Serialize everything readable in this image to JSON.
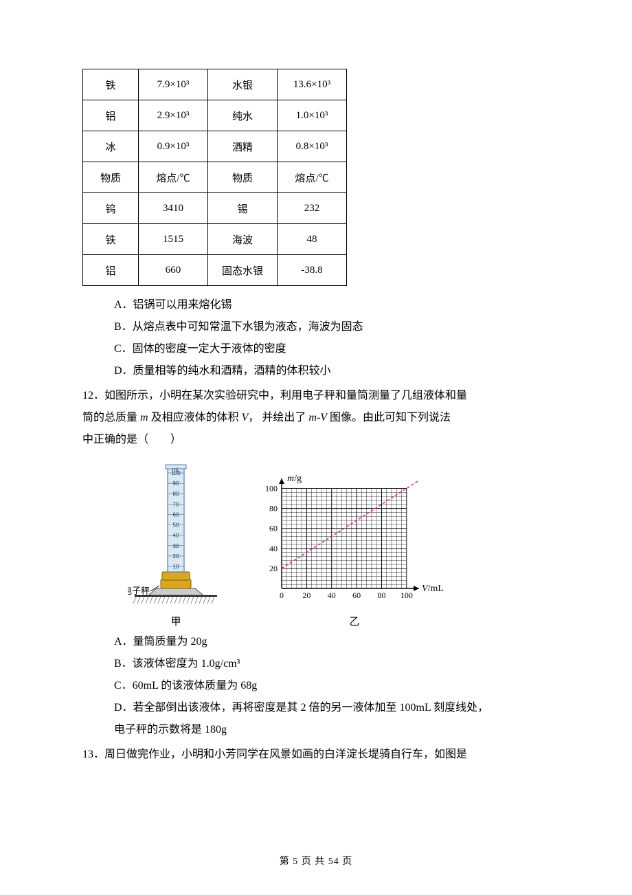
{
  "table": {
    "colWidths": [
      "col-a",
      "col-b",
      "col-c",
      "col-d"
    ],
    "rows": [
      [
        "铁",
        "7.9×10³",
        "水银",
        "13.6×10³"
      ],
      [
        "铝",
        "2.9×10³",
        "纯水",
        "1.0×10³"
      ],
      [
        "冰",
        "0.9×10³",
        "酒精",
        "0.8×10³"
      ],
      [
        "物质",
        "熔点/℃",
        "物质",
        "熔点/℃"
      ],
      [
        "钨",
        "3410",
        "锡",
        "232"
      ],
      [
        "铁",
        "1515",
        "海波",
        "48"
      ],
      [
        "铝",
        "660",
        "固态水银",
        "-38.8"
      ]
    ]
  },
  "q11options": {
    "A": "A．铝锅可以用来熔化锡",
    "B": "B．从熔点表中可知常温下水银为液态，海波为固态",
    "C": "C．固体的密度一定大于液体的密度",
    "D": "D．质量相等的纯水和酒精，酒精的体积较小"
  },
  "q12": {
    "stem1": "12．如图所示，小明在某次实验研究中，利用电子秤和量筒测量了几组液体和量",
    "stem2_pre": "筒的总质量 ",
    "stem2_m": "m",
    "stem2_mid1": " 及相应液体的体积 ",
    "stem2_V": "V",
    "stem2_mid2": "，  并绘出了 ",
    "stem2_mv": "m-V",
    "stem2_post": " 图像。由此可知下列说法",
    "stem3": "中正确的是（　　）"
  },
  "cylinder": {
    "label_text": "电子秤",
    "caption": "甲",
    "unit": "mL",
    "ticks": [
      "100",
      "90",
      "80",
      "70",
      "60",
      "50",
      "40",
      "30",
      "20",
      "10"
    ],
    "body_fill": "#dbe8f2",
    "body_stroke": "#5a7da6",
    "base_fill": "#d9a81e",
    "ground_fill": "#888888"
  },
  "chart": {
    "caption": "乙",
    "ylabel_pre": "m",
    "ylabel_unit": "/g",
    "xlabel_pre": "V",
    "xlabel_unit": "/mL",
    "x_ticks": [
      "0",
      "20",
      "40",
      "60",
      "80",
      "100"
    ],
    "y_ticks": [
      "20",
      "40",
      "60",
      "80",
      "100"
    ],
    "xlim": [
      0,
      110
    ],
    "ylim": [
      0,
      110
    ],
    "grid_color": "#000000",
    "minor_grid_color": "#000000",
    "line_color": "#d92b8a",
    "line_dash": "4,3",
    "line_points": [
      [
        0,
        20
      ],
      [
        100,
        100
      ],
      [
        110,
        108
      ]
    ],
    "bg": "#ffffff"
  },
  "q12options": {
    "A": "A．量筒质量为 20g",
    "B": "B．该液体密度为 1.0g/cm³",
    "C": "C．60mL 的该液体质量为 68g",
    "D1": "D．若全部倒出该液体，再将密度是其 2 倍的另一液体加至 100mL 刻度线处，",
    "D2": "电子秤的示数将是 180g"
  },
  "q13": {
    "stem": "13．周日做完作业，小明和小芳同学在风景如画的白洋淀长堤骑自行车，如图是"
  },
  "pageNum": {
    "pre": "第 ",
    "cur": "5",
    "mid": " 页 共 ",
    "total": "54",
    "post": " 页"
  }
}
